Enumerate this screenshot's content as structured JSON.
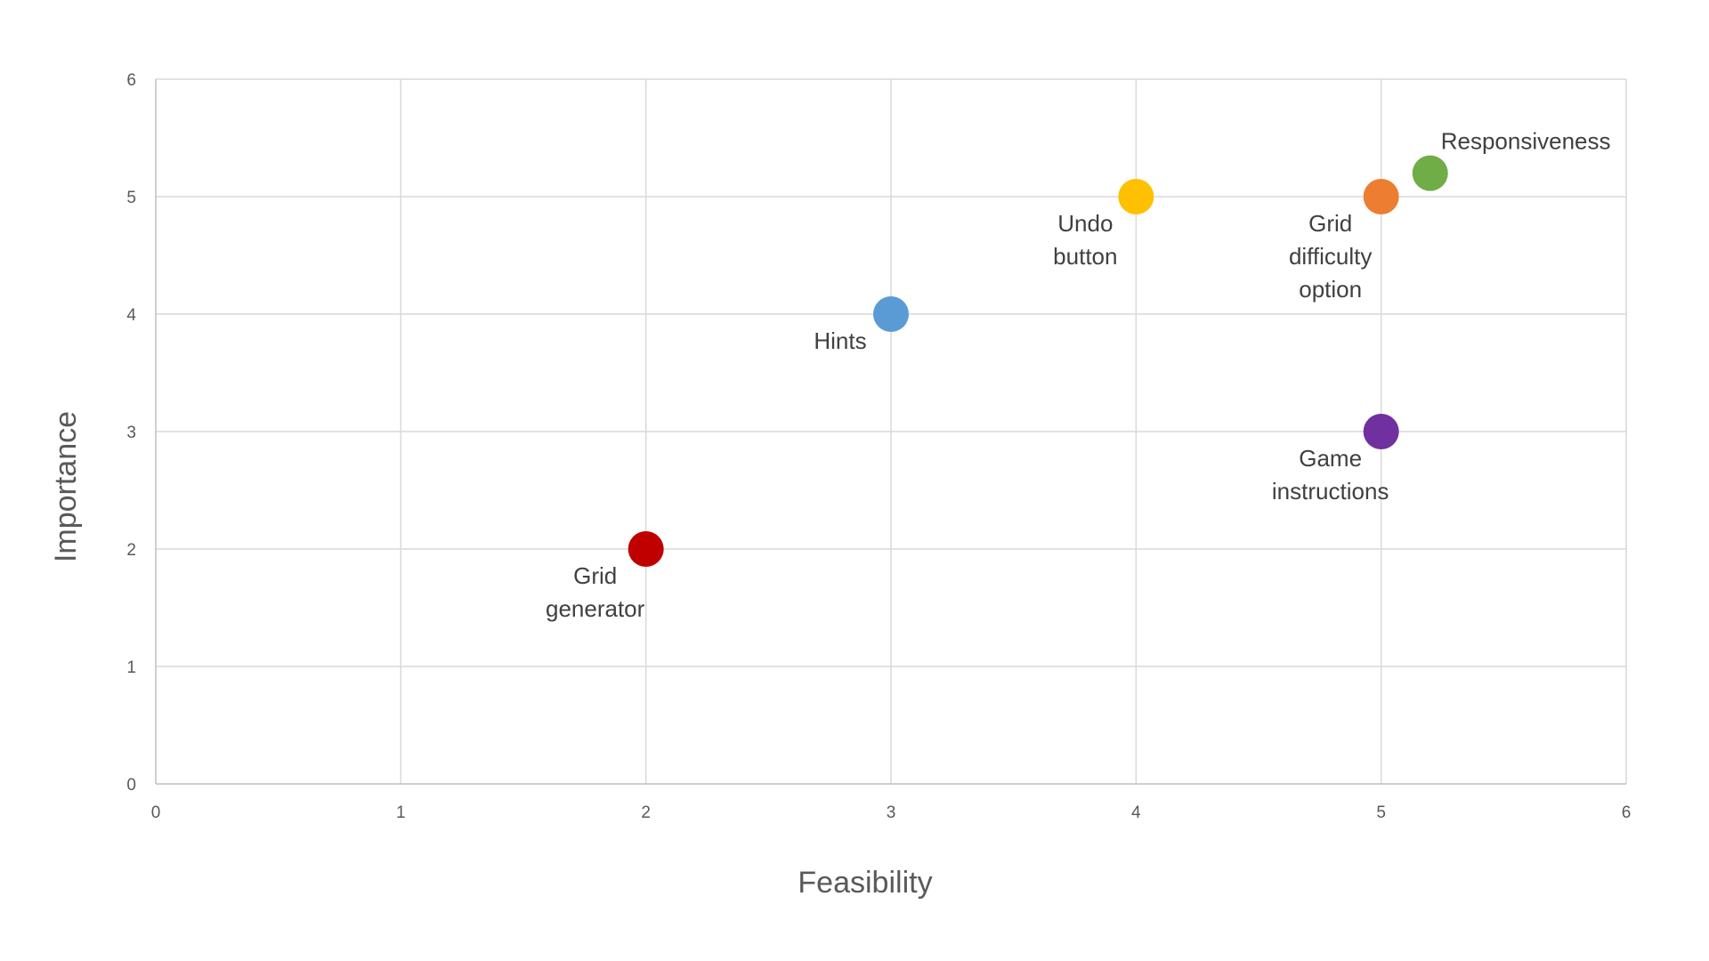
{
  "chart_data": {
    "type": "scatter",
    "title": "",
    "xlabel": "Feasibility",
    "ylabel": "Importance",
    "xlim": [
      0,
      6
    ],
    "ylim": [
      0,
      6
    ],
    "x_ticks": [
      "0",
      "1",
      "2",
      "3",
      "4",
      "5",
      "6"
    ],
    "y_ticks": [
      "0",
      "1",
      "2",
      "3",
      "4",
      "5",
      "6"
    ],
    "grid": true,
    "legend": "none",
    "points": [
      {
        "label": "Grid generator",
        "label_lines": [
          "Grid",
          "generator"
        ],
        "x": 2,
        "y": 2,
        "color": "#C00000",
        "label_position": "below-left"
      },
      {
        "label": "Hints",
        "label_lines": [
          "Hints"
        ],
        "x": 3,
        "y": 4,
        "color": "#5B9BD5",
        "label_position": "below-left"
      },
      {
        "label": "Undo button",
        "label_lines": [
          "Undo",
          "button"
        ],
        "x": 4,
        "y": 5,
        "color": "#FFC000",
        "label_position": "below-left"
      },
      {
        "label": "Grid difficulty option",
        "label_lines": [
          "Grid",
          "difficulty",
          "option"
        ],
        "x": 5,
        "y": 5,
        "color": "#ED7D31",
        "label_position": "below-left"
      },
      {
        "label": "Responsiveness",
        "label_lines": [
          "Responsiveness"
        ],
        "x": 5.2,
        "y": 5.2,
        "color": "#70AD47",
        "label_position": "above-right"
      },
      {
        "label": "Game instructions",
        "label_lines": [
          "Game",
          "instructions"
        ],
        "x": 5,
        "y": 3,
        "color": "#7030A0",
        "label_position": "below-left"
      }
    ]
  }
}
